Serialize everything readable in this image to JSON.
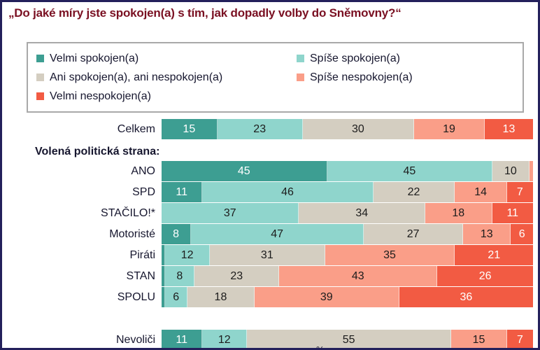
{
  "title": "„Do jaké míry jste spokojen(a) s tím, jak dopadly volby do Sněmovny?“",
  "footer_fragment": "%",
  "colors": {
    "frame_border": "#23205b",
    "title_text": "#7a1022",
    "body_text": "#16162e",
    "legend_border": "#a9a9a9"
  },
  "chart_data": {
    "type": "bar",
    "orientation": "horizontal-stacked",
    "unit": "percent",
    "label_min_value": 5,
    "legend_position": "top, boxed, two columns",
    "series_names": [
      "Velmi spokojen(a)",
      "Spíše spokojen(a)",
      "Ani spokojen(a), ani nespokojen(a)",
      "Spíše nespokojen(a)",
      "Velmi nespokojen(a)"
    ],
    "series_colors": [
      "#3d9e92",
      "#8fd5cc",
      "#d4cec1",
      "#fa9e88",
      "#f25b43"
    ],
    "series_label_text_colors": [
      "#ffffff",
      "#1c1c1c",
      "#1c1c1c",
      "#1c1c1c",
      "#ffffff"
    ],
    "rows": [
      {
        "type": "row",
        "label": "Celkem",
        "values": [
          15,
          23,
          30,
          19,
          13
        ]
      },
      {
        "type": "header",
        "text": "Volená politická strana:"
      },
      {
        "type": "row",
        "label": "ANO",
        "values": [
          45,
          45,
          10,
          1,
          0
        ]
      },
      {
        "type": "row",
        "label": "SPD",
        "values": [
          11,
          46,
          22,
          14,
          7
        ]
      },
      {
        "type": "row",
        "label": "STAČILO!*",
        "values": [
          0,
          37,
          34,
          18,
          11
        ]
      },
      {
        "type": "row",
        "label": "Motoristé",
        "values": [
          8,
          47,
          27,
          13,
          6
        ]
      },
      {
        "type": "row",
        "label": "Piráti",
        "values": [
          1,
          12,
          31,
          35,
          21
        ]
      },
      {
        "type": "row",
        "label": "STAN",
        "values": [
          1,
          8,
          23,
          43,
          26
        ]
      },
      {
        "type": "row",
        "label": "SPOLU",
        "values": [
          1,
          6,
          18,
          39,
          36
        ]
      },
      {
        "type": "spacer"
      },
      {
        "type": "row",
        "label": "Nevoliči",
        "values": [
          11,
          12,
          55,
          15,
          7
        ]
      }
    ]
  }
}
